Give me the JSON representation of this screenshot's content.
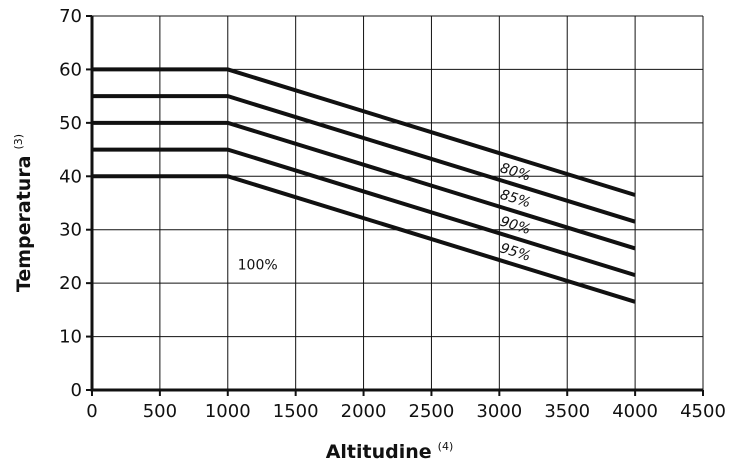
{
  "chart_data": {
    "type": "line",
    "title": "",
    "xlabel": "Altitudine",
    "xlabel_superscript": "(4)",
    "ylabel": "Temperatura",
    "ylabel_superscript": "(3)",
    "xlim": [
      0,
      4500
    ],
    "ylim": [
      0,
      70
    ],
    "x_ticks": [
      0,
      500,
      1000,
      1500,
      2000,
      2500,
      3000,
      3500,
      4000,
      4500
    ],
    "y_ticks": [
      0,
      10,
      20,
      30,
      40,
      50,
      60,
      70
    ],
    "grid": true,
    "series": [
      {
        "name": "",
        "x": [
          0,
          1000,
          4000
        ],
        "y": [
          60,
          60,
          36.5
        ]
      },
      {
        "name": "80%",
        "x": [
          0,
          1000,
          4000
        ],
        "y": [
          55,
          55,
          31.5
        ]
      },
      {
        "name": "85%",
        "x": [
          0,
          1000,
          4000
        ],
        "y": [
          50,
          50,
          26.5
        ]
      },
      {
        "name": "90%",
        "x": [
          0,
          1000,
          4000
        ],
        "y": [
          45,
          45,
          21.5
        ]
      },
      {
        "name": "95%",
        "x": [
          0,
          1000,
          4000
        ],
        "y": [
          40,
          40,
          16.5
        ]
      }
    ],
    "annotations": [
      {
        "text": "100%",
        "x": 1220,
        "y": 23.5
      }
    ],
    "colors": {
      "line": "#111111",
      "grid": "#111111",
      "background": "#ffffff"
    }
  }
}
